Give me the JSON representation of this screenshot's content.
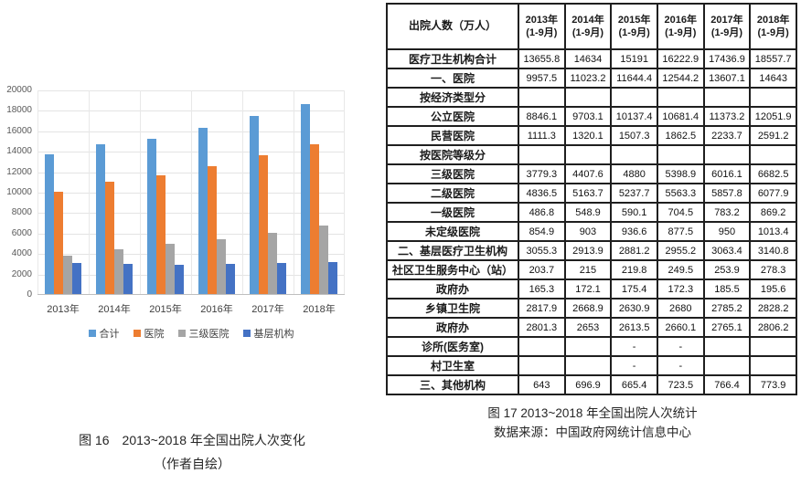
{
  "figure16": {
    "caption": "图 16　2013~2018 年全国出院人次变化",
    "subcaption": "（作者自绘）"
  },
  "figure17": {
    "caption": "图 17 2013~2018 年全国出院人次统计",
    "source": "数据来源：中国政府网统计信息中心"
  },
  "chart_data": [
    {
      "type": "bar",
      "title": "图 16 2013~2018 年全国出院人次变化",
      "categories": [
        "2013年",
        "2014年",
        "2015年",
        "2016年",
        "2017年",
        "2018年"
      ],
      "series": [
        {
          "name": "合计",
          "color": "#5B9BD5",
          "values": [
            13655.8,
            14634,
            15191,
            16222.9,
            17436.9,
            18557.7
          ]
        },
        {
          "name": "医院",
          "color": "#ED7D31",
          "values": [
            9957.5,
            11023.2,
            11644.4,
            12544.2,
            13607.1,
            14643
          ]
        },
        {
          "name": "三级医院",
          "color": "#A5A5A5",
          "values": [
            3779.3,
            4407.6,
            4880,
            5398.9,
            6016.1,
            6682.5
          ]
        },
        {
          "name": "基层机构",
          "color": "#4472C4",
          "values": [
            3055.3,
            2913.9,
            2881.2,
            2955.2,
            3063.4,
            3140.8
          ]
        }
      ],
      "xlabel": "",
      "ylabel": "",
      "ylim": [
        0,
        20000
      ],
      "ytick_step": 2000,
      "grid": true,
      "legend_position": "bottom"
    },
    {
      "type": "table",
      "title": "图 17 2013~2018 年全国出院人次统计",
      "col_header": "出院人数（万人）",
      "year_cols": [
        {
          "year": "2013年",
          "sub": "(1-9月)"
        },
        {
          "year": "2014年",
          "sub": "(1-9月)"
        },
        {
          "year": "2015年",
          "sub": "(1-9月)"
        },
        {
          "year": "2016年",
          "sub": "(1-9月)"
        },
        {
          "year": "2017年",
          "sub": "(1-9月)"
        },
        {
          "year": "2018年",
          "sub": "(1-9月)"
        }
      ],
      "rows": [
        {
          "label": "医疗卫生机构合计",
          "values": [
            "13655.8",
            "14634",
            "15191",
            "16222.9",
            "17436.9",
            "18557.7"
          ]
        },
        {
          "label": "一、医院",
          "values": [
            "9957.5",
            "11023.2",
            "11644.4",
            "12544.2",
            "13607.1",
            "14643"
          ]
        },
        {
          "label": "按经济类型分",
          "values": [
            "",
            "",
            "",
            "",
            "",
            ""
          ]
        },
        {
          "label": "公立医院",
          "values": [
            "8846.1",
            "9703.1",
            "10137.4",
            "10681.4",
            "11373.2",
            "12051.9"
          ]
        },
        {
          "label": "民营医院",
          "values": [
            "1111.3",
            "1320.1",
            "1507.3",
            "1862.5",
            "2233.7",
            "2591.2"
          ]
        },
        {
          "label": "按医院等级分",
          "values": [
            "",
            "",
            "",
            "",
            "",
            ""
          ]
        },
        {
          "label": "三级医院",
          "values": [
            "3779.3",
            "4407.6",
            "4880",
            "5398.9",
            "6016.1",
            "6682.5"
          ]
        },
        {
          "label": "二级医院",
          "values": [
            "4836.5",
            "5163.7",
            "5237.7",
            "5563.3",
            "5857.8",
            "6077.9"
          ]
        },
        {
          "label": "一级医院",
          "values": [
            "486.8",
            "548.9",
            "590.1",
            "704.5",
            "783.2",
            "869.2"
          ]
        },
        {
          "label": "未定级医院",
          "values": [
            "854.9",
            "903",
            "936.6",
            "877.5",
            "950",
            "1013.4"
          ]
        },
        {
          "label": "二、基层医疗卫生机构",
          "values": [
            "3055.3",
            "2913.9",
            "2881.2",
            "2955.2",
            "3063.4",
            "3140.8"
          ]
        },
        {
          "label": "社区卫生服务中心（站）",
          "values": [
            "203.7",
            "215",
            "219.8",
            "249.5",
            "253.9",
            "278.3"
          ]
        },
        {
          "label": "政府办",
          "values": [
            "165.3",
            "172.1",
            "175.4",
            "172.3",
            "185.5",
            "195.6"
          ]
        },
        {
          "label": "乡镇卫生院",
          "values": [
            "2817.9",
            "2668.9",
            "2630.9",
            "2680",
            "2785.2",
            "2828.2"
          ]
        },
        {
          "label": "政府办",
          "values": [
            "2801.3",
            "2653",
            "2613.5",
            "2660.1",
            "2765.1",
            "2806.2"
          ]
        },
        {
          "label": "诊所(医务室)",
          "values": [
            "",
            "",
            "-",
            "-",
            "",
            ""
          ]
        },
        {
          "label": "村卫生室",
          "values": [
            "",
            "",
            "-",
            "-",
            "",
            ""
          ]
        },
        {
          "label": "三、其他机构",
          "values": [
            "643",
            "696.9",
            "665.4",
            "723.5",
            "766.4",
            "773.9"
          ]
        }
      ]
    }
  ]
}
